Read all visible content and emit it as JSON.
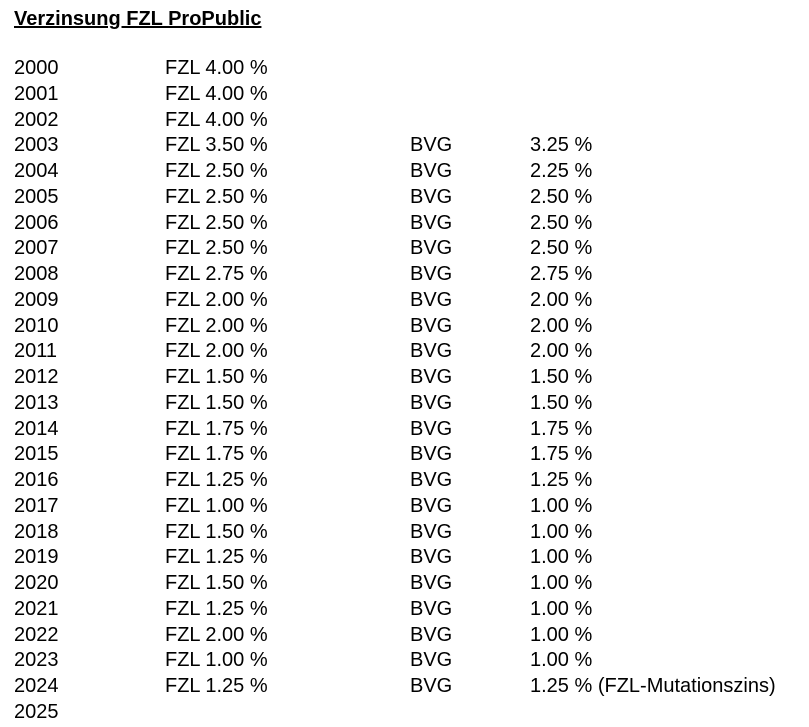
{
  "document": {
    "title": "Verzinsung FZL ProPublic"
  },
  "rows": [
    {
      "year": "2000",
      "fzl": "FZL 4.00 %",
      "bvg": "",
      "bvg_rate": ""
    },
    {
      "year": "2001",
      "fzl": "FZL 4.00 %",
      "bvg": "",
      "bvg_rate": ""
    },
    {
      "year": "2002",
      "fzl": "FZL 4.00 %",
      "bvg": "",
      "bvg_rate": ""
    },
    {
      "year": "2003",
      "fzl": "FZL 3.50 %",
      "bvg": "BVG",
      "bvg_rate": "3.25 %"
    },
    {
      "year": "2004",
      "fzl": "FZL 2.50 %",
      "bvg": "BVG",
      "bvg_rate": "2.25 %"
    },
    {
      "year": "2005",
      "fzl": "FZL 2.50 %",
      "bvg": "BVG",
      "bvg_rate": "2.50 %"
    },
    {
      "year": "2006",
      "fzl": "FZL 2.50 %",
      "bvg": "BVG",
      "bvg_rate": "2.50 %"
    },
    {
      "year": "2007",
      "fzl": "FZL 2.50 %",
      "bvg": "BVG",
      "bvg_rate": "2.50 %"
    },
    {
      "year": "2008",
      "fzl": "FZL 2.75 %",
      "bvg": "BVG",
      "bvg_rate": "2.75 %"
    },
    {
      "year": "2009",
      "fzl": "FZL 2.00 %",
      "bvg": "BVG",
      "bvg_rate": "2.00 %"
    },
    {
      "year": "2010",
      "fzl": "FZL 2.00 %",
      "bvg": "BVG",
      "bvg_rate": "2.00 %"
    },
    {
      "year": "2011",
      "fzl": "FZL 2.00 %",
      "bvg": "BVG",
      "bvg_rate": "2.00 %"
    },
    {
      "year": "2012",
      "fzl": "FZL 1.50 %",
      "bvg": "BVG",
      "bvg_rate": "1.50 %"
    },
    {
      "year": "2013",
      "fzl": "FZL 1.50 %",
      "bvg": "BVG",
      "bvg_rate": "1.50 %"
    },
    {
      "year": "2014",
      "fzl": "FZL 1.75 %",
      "bvg": "BVG",
      "bvg_rate": "1.75 %"
    },
    {
      "year": "2015",
      "fzl": "FZL 1.75 %",
      "bvg": "BVG",
      "bvg_rate": "1.75 %"
    },
    {
      "year": "2016",
      "fzl": "FZL 1.25 %",
      "bvg": "BVG",
      "bvg_rate": "1.25 %"
    },
    {
      "year": "2017",
      "fzl": "FZL 1.00 %",
      "bvg": "BVG",
      "bvg_rate": "1.00 %"
    },
    {
      "year": "2018",
      "fzl": "FZL 1.50 %",
      "bvg": "BVG",
      "bvg_rate": "1.00 %"
    },
    {
      "year": "2019",
      "fzl": "FZL 1.25 %",
      "bvg": "BVG",
      "bvg_rate": "1.00 %"
    },
    {
      "year": "2020",
      "fzl": "FZL 1.50 %",
      "bvg": "BVG",
      "bvg_rate": "1.00 %"
    },
    {
      "year": "2021",
      "fzl": "FZL 1.25 %",
      "bvg": "BVG",
      "bvg_rate": "1.00 %"
    },
    {
      "year": "2022",
      "fzl": "FZL 2.00 %",
      "bvg": "BVG",
      "bvg_rate": "1.00 %"
    },
    {
      "year": "2023",
      "fzl": "FZL 1.00 %",
      "bvg": "BVG",
      "bvg_rate": "1.00 %"
    },
    {
      "year": "2024",
      "fzl": "FZL 1.25 %",
      "bvg": "BVG",
      "bvg_rate": "1.25 % (FZL-Mutationszins)"
    },
    {
      "year": "2025",
      "fzl": "",
      "bvg": "",
      "bvg_rate": ""
    }
  ]
}
